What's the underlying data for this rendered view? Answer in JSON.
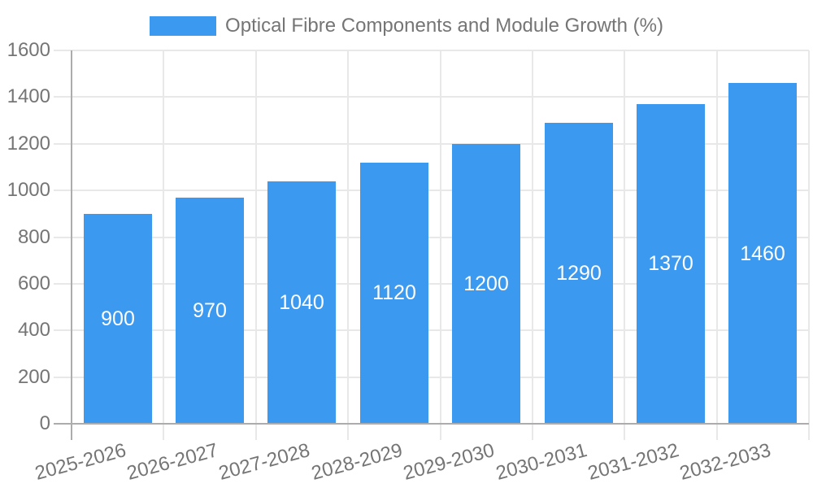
{
  "chart_data": {
    "type": "bar",
    "title": "Optical Fibre Components and Module Growth (%)",
    "legend": [
      "Optical Fibre Components and Module Growth (%)"
    ],
    "legend_position": "top-center",
    "categories": [
      "2025-2026",
      "2026-2027",
      "2027-2028",
      "2028-2029",
      "2029-2030",
      "2030-2031",
      "2031-2032",
      "2032-2033"
    ],
    "values": [
      900,
      970,
      1040,
      1120,
      1200,
      1290,
      1370,
      1460
    ],
    "xlabel": "",
    "ylabel": "",
    "ylim": [
      0,
      1600
    ],
    "yticks": [
      0,
      200,
      400,
      600,
      800,
      1000,
      1200,
      1400,
      1600
    ],
    "grid": true,
    "value_label_position": "inside-center",
    "x_label_rotation_deg": -15,
    "colors": {
      "bar": "#3C99F0",
      "grid": "#E8E8E8",
      "axis": "#ACACAC",
      "label": "#757575",
      "value_label": "#FFFFFF",
      "background": "#FFFFFF"
    }
  }
}
